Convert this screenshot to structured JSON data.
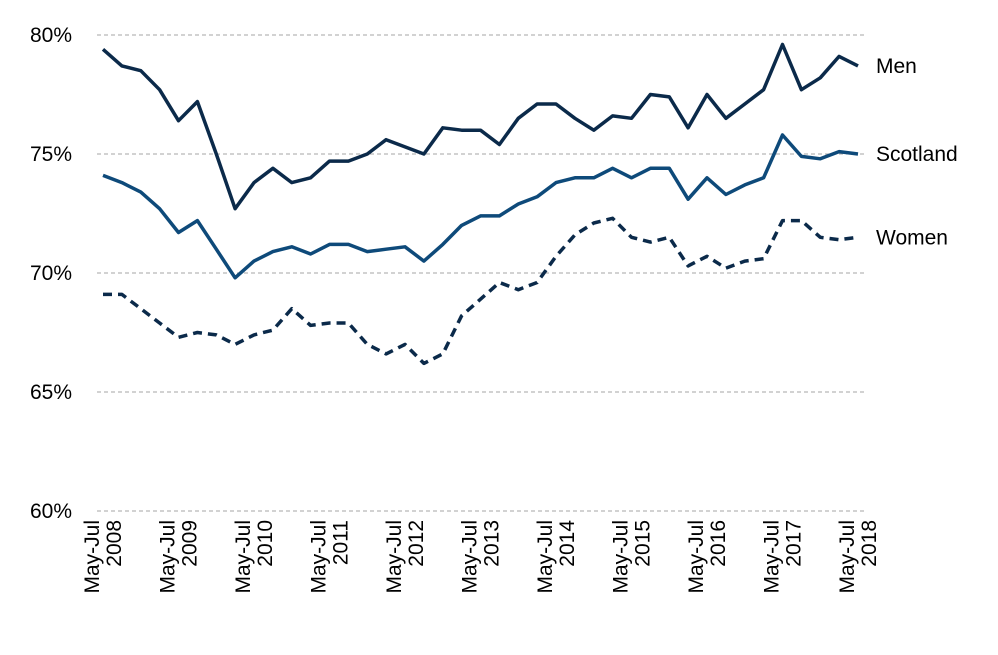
{
  "chart_data": {
    "type": "line",
    "x": [
      "May-Jul 2008",
      "Aug-Oct 2008",
      "Nov-Jan 2009",
      "Feb-Apr 2009",
      "May-Jul 2009",
      "Aug-Oct 2009",
      "Nov-Jan 2010",
      "Feb-Apr 2010",
      "May-Jul 2010",
      "Aug-Oct 2010",
      "Nov-Jan 2011",
      "Feb-Apr 2011",
      "May-Jul 2011",
      "Aug-Oct 2011",
      "Nov-Jan 2012",
      "Feb-Apr 2012",
      "May-Jul 2012",
      "Aug-Oct 2012",
      "Nov-Jan 2013",
      "Feb-Apr 2013",
      "May-Jul 2013",
      "Aug-Oct 2013",
      "Nov-Jan 2014",
      "Feb-Apr 2014",
      "May-Jul 2014",
      "Aug-Oct 2014",
      "Nov-Jan 2015",
      "Feb-Apr 2015",
      "May-Jul 2015",
      "Aug-Oct 2015",
      "Nov-Jan 2016",
      "Feb-Apr 2016",
      "May-Jul 2016",
      "Aug-Oct 2016",
      "Nov-Jan 2017",
      "Feb-Apr 2017",
      "May-Jul 2017",
      "Aug-Oct 2017",
      "Nov-Jan 2018",
      "Feb-Apr 2018",
      "May-Jul 2018"
    ],
    "x_tick_labels": [
      {
        "index": 0,
        "line1": "May-Jul",
        "line2": "2008"
      },
      {
        "index": 4,
        "line1": "May-Jul",
        "line2": "2009"
      },
      {
        "index": 8,
        "line1": "May-Jul",
        "line2": "2010"
      },
      {
        "index": 12,
        "line1": "May-Jul",
        "line2": "2011"
      },
      {
        "index": 16,
        "line1": "May-Jul",
        "line2": "2012"
      },
      {
        "index": 20,
        "line1": "May-Jul",
        "line2": "2013"
      },
      {
        "index": 24,
        "line1": "May-Jul",
        "line2": "2014"
      },
      {
        "index": 28,
        "line1": "May-Jul",
        "line2": "2015"
      },
      {
        "index": 32,
        "line1": "May-Jul",
        "line2": "2016"
      },
      {
        "index": 36,
        "line1": "May-Jul",
        "line2": "2017"
      },
      {
        "index": 40,
        "line1": "May-Jul",
        "line2": "2018"
      }
    ],
    "y_ticks": [
      60,
      65,
      70,
      75,
      80
    ],
    "y_tick_labels": [
      "60%",
      "65%",
      "70%",
      "75%",
      "80%"
    ],
    "ylim": [
      60,
      80
    ],
    "grid": "horizontal dashed",
    "legend": "direct labels at right end of lines",
    "title": "",
    "xlabel": "",
    "ylabel": "",
    "series": [
      {
        "name": "Men",
        "color": "#0b2a4a",
        "dash": "solid",
        "values": [
          79.4,
          78.7,
          78.5,
          77.7,
          76.4,
          77.2,
          75.0,
          72.7,
          73.8,
          74.4,
          73.8,
          74.0,
          74.7,
          74.7,
          75.0,
          75.6,
          75.3,
          75.0,
          76.1,
          76.0,
          76.0,
          75.4,
          76.5,
          77.1,
          77.1,
          76.5,
          76.0,
          76.6,
          76.5,
          77.5,
          77.4,
          76.1,
          77.5,
          76.5,
          77.1,
          77.7,
          79.6,
          77.7,
          78.2,
          79.1,
          78.7
        ]
      },
      {
        "name": "Scotland",
        "color": "#0e4a7a",
        "dash": "solid",
        "values": [
          74.1,
          73.8,
          73.4,
          72.7,
          71.7,
          72.2,
          71.0,
          69.8,
          70.5,
          70.9,
          71.1,
          70.8,
          71.2,
          71.2,
          70.9,
          71.0,
          71.1,
          70.5,
          71.2,
          72.0,
          72.4,
          72.4,
          72.9,
          73.2,
          73.8,
          74.0,
          74.0,
          74.4,
          74.0,
          74.4,
          74.4,
          73.1,
          74.0,
          73.3,
          73.7,
          74.0,
          75.8,
          74.9,
          74.8,
          75.1,
          75.0
        ]
      },
      {
        "name": "Women",
        "color": "#0b2a4a",
        "dash": "dashed",
        "values": [
          69.1,
          69.1,
          68.5,
          67.9,
          67.3,
          67.5,
          67.4,
          67.0,
          67.4,
          67.6,
          68.5,
          67.8,
          67.9,
          67.9,
          67.0,
          66.6,
          67.0,
          66.2,
          66.6,
          68.2,
          68.9,
          69.6,
          69.3,
          69.6,
          70.7,
          71.6,
          72.1,
          72.3,
          71.5,
          71.3,
          71.5,
          70.3,
          70.7,
          70.2,
          70.5,
          70.6,
          72.2,
          72.2,
          71.5,
          71.4,
          71.5
        ]
      }
    ]
  }
}
